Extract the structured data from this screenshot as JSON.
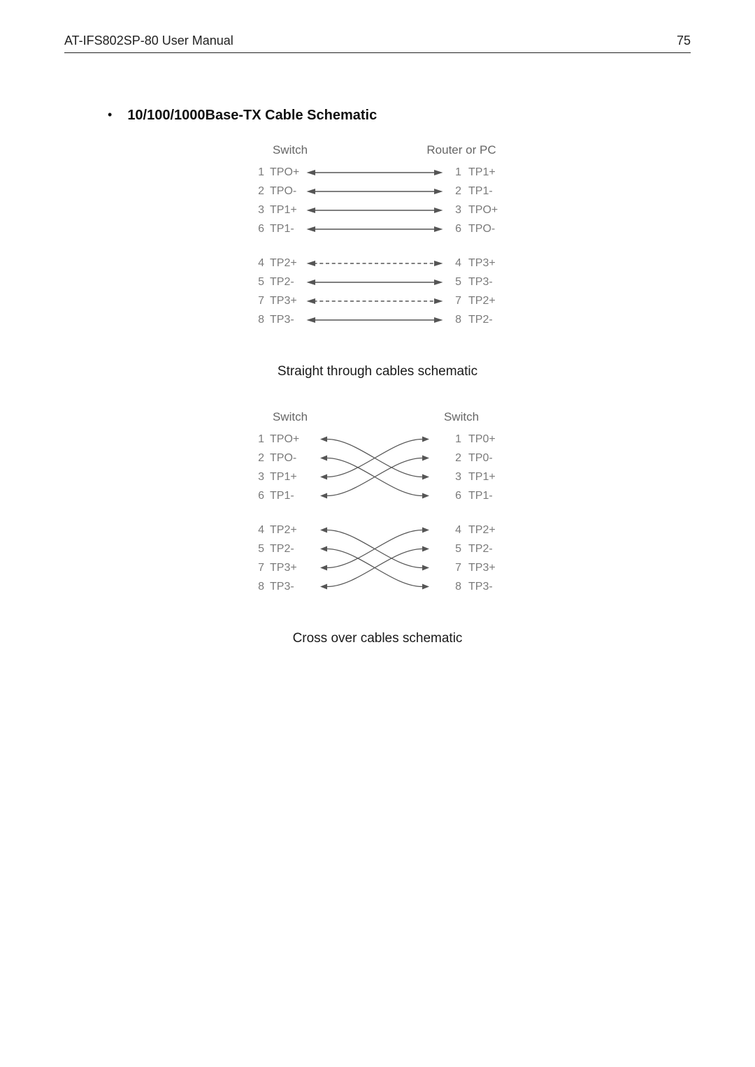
{
  "header": {
    "title": "AT-IFS802SP-80 User Manual",
    "page_number": "75"
  },
  "section": {
    "bullet": "•",
    "title": "10/100/1000Base-TX Cable Schematic"
  },
  "colors": {
    "text": "#000000",
    "diagram_text": "#7a7a7a",
    "diagram_header": "#666666",
    "line": "#555555",
    "rule": "#222222",
    "background": "#ffffff"
  },
  "straight": {
    "left_header": "Switch",
    "right_header": "Router or PC",
    "caption": "Straight through cables schematic",
    "groups": [
      [
        {
          "lp": "1",
          "ll": "TPO+",
          "rp": "1",
          "rl": "TP1+",
          "style": "solid"
        },
        {
          "lp": "2",
          "ll": "TPO-",
          "rp": "2",
          "rl": "TP1-",
          "style": "solid"
        },
        {
          "lp": "3",
          "ll": "TP1+",
          "rp": "3",
          "rl": "TPO+",
          "style": "solid"
        },
        {
          "lp": "6",
          "ll": "TP1-",
          "rp": "6",
          "rl": "TPO-",
          "style": "solid"
        }
      ],
      [
        {
          "lp": "4",
          "ll": "TP2+",
          "rp": "4",
          "rl": "TP3+",
          "style": "dash"
        },
        {
          "lp": "5",
          "ll": "TP2-",
          "rp": "5",
          "rl": "TP3-",
          "style": "solid"
        },
        {
          "lp": "7",
          "ll": "TP3+",
          "rp": "7",
          "rl": "TP2+",
          "style": "dash"
        },
        {
          "lp": "8",
          "ll": "TP3-",
          "rp": "8",
          "rl": "TP2-",
          "style": "solid"
        }
      ]
    ]
  },
  "cross": {
    "left_header": "Switch",
    "right_header": "Switch",
    "caption": "Cross over cables schematic",
    "groups": [
      {
        "left": [
          {
            "p": "1",
            "l": "TPO+"
          },
          {
            "p": "2",
            "l": "TPO-"
          },
          {
            "p": "3",
            "l": "TP1+"
          },
          {
            "p": "6",
            "l": "TP1-"
          }
        ],
        "right": [
          {
            "p": "1",
            "l": "TP0+"
          },
          {
            "p": "2",
            "l": "TP0-"
          },
          {
            "p": "3",
            "l": "TP1+"
          },
          {
            "p": "6",
            "l": "TP1-"
          }
        ],
        "map": [
          [
            0,
            2
          ],
          [
            1,
            3
          ],
          [
            2,
            0
          ],
          [
            3,
            1
          ]
        ]
      },
      {
        "left": [
          {
            "p": "4",
            "l": "TP2+"
          },
          {
            "p": "5",
            "l": "TP2-"
          },
          {
            "p": "7",
            "l": "TP3+"
          },
          {
            "p": "8",
            "l": "TP3-"
          }
        ],
        "right": [
          {
            "p": "4",
            "l": "TP2+"
          },
          {
            "p": "5",
            "l": "TP2-"
          },
          {
            "p": "7",
            "l": "TP3+"
          },
          {
            "p": "8",
            "l": "TP3-"
          }
        ],
        "map": [
          [
            0,
            2
          ],
          [
            1,
            3
          ],
          [
            2,
            0
          ],
          [
            3,
            1
          ]
        ]
      }
    ]
  }
}
